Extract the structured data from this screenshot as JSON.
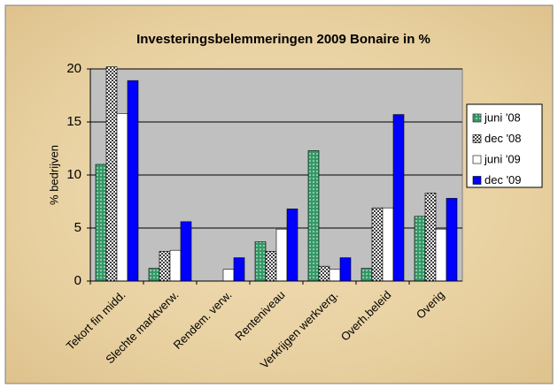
{
  "chart_data": {
    "type": "bar",
    "title": "Investeringsbelemmeringen 2009 Bonaire in %",
    "y_label": "% bedrijven",
    "categories": [
      "Tekort fin midd.",
      "Slechte marktverw.",
      "Rendem. verw.",
      "Renteniveau",
      "Verkrijgen werkverg.",
      "Overh.beleid",
      "Overig"
    ],
    "series": [
      {
        "name": "juni '08",
        "color": "#339966",
        "values": [
          11,
          1.2,
          0,
          3.7,
          12.3,
          1.2,
          6.1
        ]
      },
      {
        "name": "dec '08",
        "color": "#808080",
        "values": [
          20.2,
          2.8,
          0,
          2.8,
          1.4,
          6.9,
          8.3
        ]
      },
      {
        "name": "juni '09",
        "color": "#ffffff",
        "values": [
          15.8,
          2.9,
          1.1,
          4.9,
          1.1,
          6.9,
          4.9
        ]
      },
      {
        "name": "dec '09",
        "color": "#0000ff",
        "values": [
          18.9,
          5.6,
          2.2,
          6.8,
          2.2,
          15.7,
          7.8
        ]
      }
    ],
    "ylim": [
      0,
      20
    ],
    "yticks": [
      0,
      5,
      10,
      15,
      20
    ],
    "grid": true,
    "legend": "right"
  }
}
